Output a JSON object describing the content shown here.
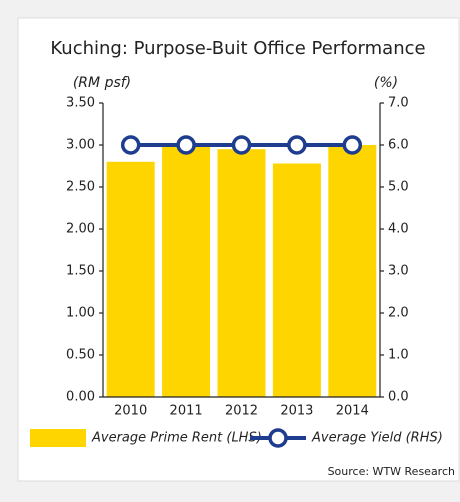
{
  "chart_data": {
    "type": "bar_line",
    "title": "Kuching: Purpose-Buit Office Performance",
    "y_label": "(RM psf)",
    "y2_label": "(%)",
    "categories": [
      "2010",
      "2011",
      "2012",
      "2013",
      "2014"
    ],
    "series": [
      {
        "name": "Average Prime Rent (LHS)",
        "type": "bar",
        "color": "#ffd500",
        "values": [
          2.8,
          3.0,
          2.95,
          2.78,
          3.0
        ]
      },
      {
        "name": "Average Yield (RHS)",
        "type": "line",
        "axis": "y2",
        "color": "#1f3d8f",
        "values": [
          6.0,
          6.0,
          6.0,
          6.0,
          6.0
        ]
      }
    ],
    "ylim": [
      0,
      3.5
    ],
    "yticks": [
      {
        "value": 0,
        "label": "0.00"
      },
      {
        "value": 0.5,
        "label": "0.50"
      },
      {
        "value": 1,
        "label": "1.00"
      },
      {
        "value": 1.5,
        "label": "1.50"
      },
      {
        "value": 2,
        "label": "2.00"
      },
      {
        "value": 2.5,
        "label": "2.50"
      },
      {
        "value": 3,
        "label": "3.00"
      },
      {
        "value": 3.5,
        "label": "3.50"
      }
    ],
    "y2lim": [
      0,
      7
    ],
    "y2ticks": [
      {
        "value": 0,
        "label": "0.0"
      },
      {
        "value": 1,
        "label": "1.0"
      },
      {
        "value": 2,
        "label": "2.0"
      },
      {
        "value": 3,
        "label": "3.0"
      },
      {
        "value": 4,
        "label": "4.0"
      },
      {
        "value": 5,
        "label": "5.0"
      },
      {
        "value": 6,
        "label": "6.0"
      },
      {
        "value": 7,
        "label": "7.0"
      }
    ],
    "source": "Source: WTW Research"
  }
}
